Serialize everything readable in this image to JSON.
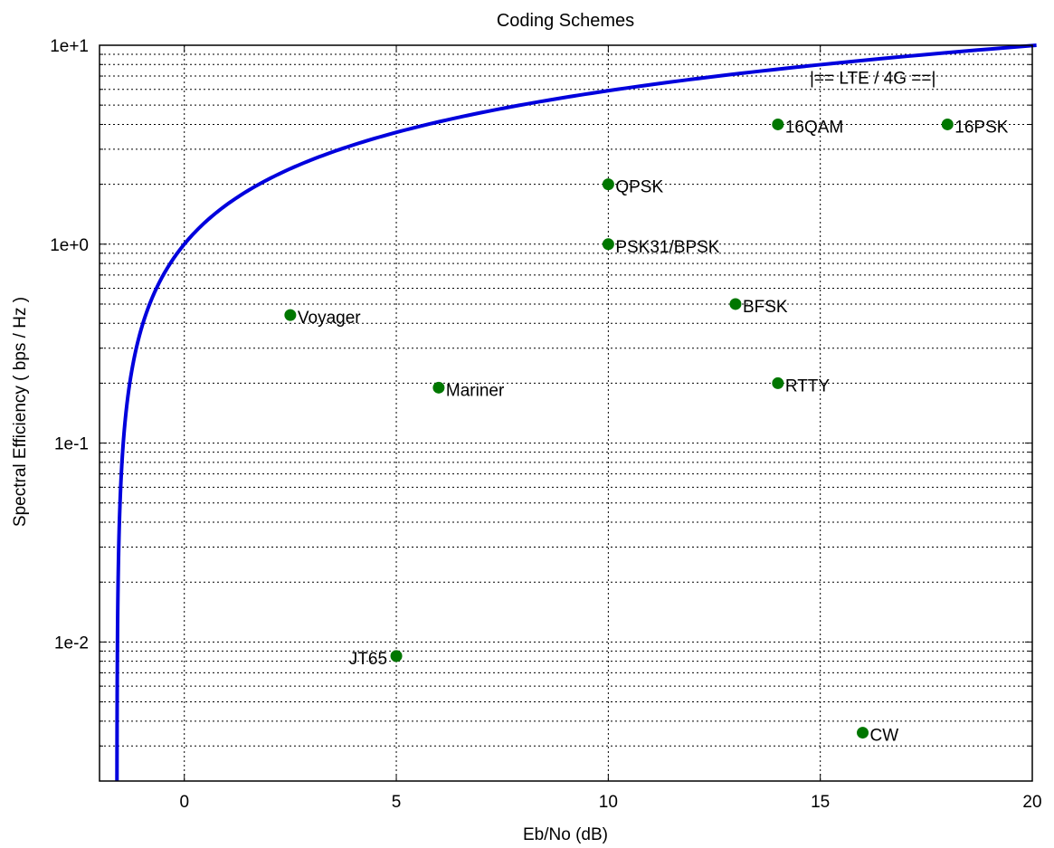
{
  "chart_data": {
    "type": "scatter",
    "title": "Coding Schemes",
    "xlabel": "Eb/No (dB)",
    "ylabel": "Spectral Efficiency ( bps / Hz )",
    "xlim": [
      -2,
      20
    ],
    "ylim": [
      0.002,
      10
    ],
    "yscale": "log",
    "grid": true,
    "xticks": [
      0,
      5,
      10,
      15,
      20
    ],
    "xtick_labels": [
      "0",
      "5",
      "10",
      "15",
      "20"
    ],
    "yticks": [
      0.01,
      0.1,
      1,
      10
    ],
    "ytick_labels": [
      "1e-2",
      "1e-1",
      "1e+0",
      "1e+1"
    ],
    "curve": {
      "description": "Shannon limit Eb/No = 10*log10((2^eta - 1)/eta)",
      "color": "#0000dd"
    },
    "annotation": "|== LTE / 4G ==|",
    "point_color": "#007700",
    "points": [
      {
        "label": "Voyager",
        "x": 2.5,
        "y": 0.44
      },
      {
        "label": "Mariner",
        "x": 6,
        "y": 0.19
      },
      {
        "label": "JT65",
        "x": 5,
        "y": 0.0085
      },
      {
        "label": "PSK31/BPSK",
        "x": 10,
        "y": 1
      },
      {
        "label": "QPSK",
        "x": 10,
        "y": 2
      },
      {
        "label": "BFSK",
        "x": 13,
        "y": 0.5
      },
      {
        "label": "RTTY",
        "x": 14,
        "y": 0.2
      },
      {
        "label": "16QAM",
        "x": 14,
        "y": 4
      },
      {
        "label": "16PSK",
        "x": 18,
        "y": 4
      },
      {
        "label": "CW",
        "x": 16,
        "y": 0.0035
      }
    ]
  }
}
